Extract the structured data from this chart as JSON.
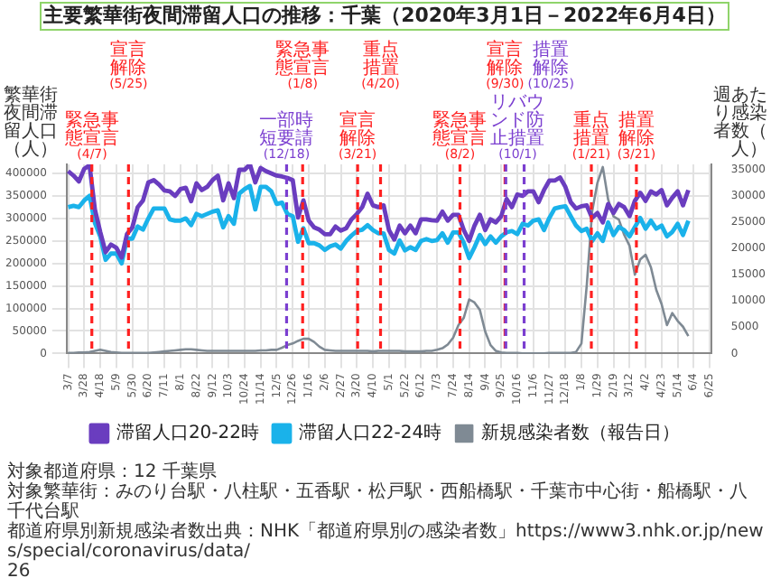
{
  "chart_data": {
    "type": "line",
    "title": "主要繁華街夜間滞留人口の推移：千葉（2020年3月1日－2022年6月4日）",
    "ylabel": "繁華街夜間滞留人口（人）",
    "y2label": "週あたり感染者数（人）",
    "x": [
      "2020-03-07",
      "2020-03-14",
      "2020-03-21",
      "2020-03-28",
      "2020-04-04",
      "2020-04-11",
      "2020-04-18",
      "2020-04-25",
      "2020-05-02",
      "2020-05-09",
      "2020-05-16",
      "2020-05-23",
      "2020-05-30",
      "2020-06-06",
      "2020-06-13",
      "2020-06-20",
      "2020-06-27",
      "2020-07-04",
      "2020-07-11",
      "2020-07-18",
      "2020-07-25",
      "2020-08-01",
      "2020-08-08",
      "2020-08-15",
      "2020-08-22",
      "2020-08-29",
      "2020-09-05",
      "2020-09-12",
      "2020-09-19",
      "2020-09-26",
      "2020-10-03",
      "2020-10-10",
      "2020-10-17",
      "2020-10-24",
      "2020-10-31",
      "2020-11-07",
      "2020-11-14",
      "2020-11-21",
      "2020-11-28",
      "2020-12-05",
      "2020-12-12",
      "2020-12-19",
      "2020-12-26",
      "2021-01-02",
      "2021-01-09",
      "2021-01-16",
      "2021-01-23",
      "2021-01-30",
      "2021-02-06",
      "2021-02-13",
      "2021-02-20",
      "2021-02-27",
      "2021-03-06",
      "2021-03-13",
      "2021-03-20",
      "2021-03-27",
      "2021-04-03",
      "2021-04-10",
      "2021-04-17",
      "2021-04-24",
      "2021-05-01",
      "2021-05-08",
      "2021-05-15",
      "2021-05-22",
      "2021-05-29",
      "2021-06-05",
      "2021-06-12",
      "2021-06-19",
      "2021-06-26",
      "2021-07-03",
      "2021-07-10",
      "2021-07-17",
      "2021-07-24",
      "2021-07-31",
      "2021-08-07",
      "2021-08-14",
      "2021-08-21",
      "2021-08-28",
      "2021-09-04",
      "2021-09-11",
      "2021-09-18",
      "2021-09-25",
      "2021-10-02",
      "2021-10-09",
      "2021-10-16",
      "2021-10-23",
      "2021-10-30",
      "2021-11-06",
      "2021-11-13",
      "2021-11-20",
      "2021-11-27",
      "2021-12-04",
      "2021-12-11",
      "2021-12-18",
      "2021-12-25",
      "2022-01-01",
      "2022-01-08",
      "2022-01-15",
      "2022-01-22",
      "2022-01-29",
      "2022-02-05",
      "2022-02-12",
      "2022-02-19",
      "2022-02-26",
      "2022-03-05",
      "2022-03-12",
      "2022-03-19",
      "2022-03-26",
      "2022-04-02",
      "2022-04-09",
      "2022-04-16",
      "2022-04-23",
      "2022-04-30",
      "2022-05-07",
      "2022-05-14",
      "2022-05-21",
      "2022-05-28"
    ],
    "series": [
      {
        "name": "滞留人口20-22時",
        "color": "#6a3dbf",
        "values": [
          405000,
          395000,
          382000,
          410000,
          418000,
          320000,
          270000,
          225000,
          242000,
          235000,
          213000,
          265000,
          280000,
          325000,
          340000,
          380000,
          385000,
          375000,
          362000,
          360000,
          350000,
          365000,
          368000,
          338000,
          378000,
          363000,
          370000,
          385000,
          395000,
          340000,
          378000,
          345000,
          408000,
          408000,
          420000,
          380000,
          412000,
          405000,
          400000,
          395000,
          393000,
          390000,
          385000,
          302000,
          340000,
          295000,
          280000,
          275000,
          265000,
          265000,
          282000,
          273000,
          278000,
          298000,
          310000,
          325000,
          355000,
          329000,
          325000,
          329000,
          274000,
          253000,
          284000,
          267000,
          284000,
          267000,
          298000,
          298000,
          296000,
          295000,
          315000,
          295000,
          308000,
          308000,
          274000,
          250000,
          284000,
          308000,
          274000,
          298000,
          291000,
          305000,
          343000,
          325000,
          353000,
          350000,
          360000,
          360000,
          336000,
          363000,
          384000,
          384000,
          391000,
          370000,
          336000,
          322000,
          327000,
          329000,
          301000,
          312000,
          291000,
          332000,
          312000,
          332000,
          325000,
          305000,
          339000,
          357000,
          339000,
          360000,
          353000,
          363000,
          329000,
          346000,
          360000,
          329000,
          363000
        ]
      },
      {
        "name": "滞留人口22-24時",
        "color": "#1ab2ea",
        "values": [
          325000,
          328000,
          325000,
          340000,
          350000,
          290000,
          260000,
          208000,
          222000,
          222000,
          200000,
          255000,
          255000,
          282000,
          275000,
          300000,
          322000,
          322000,
          322000,
          298000,
          295000,
          295000,
          300000,
          285000,
          310000,
          305000,
          310000,
          315000,
          318000,
          280000,
          305000,
          288000,
          355000,
          365000,
          372000,
          320000,
          370000,
          370000,
          360000,
          332000,
          335000,
          310000,
          305000,
          248000,
          278000,
          245000,
          245000,
          240000,
          230000,
          238000,
          242000,
          233000,
          250000,
          262000,
          272000,
          275000,
          285000,
          274000,
          267000,
          267000,
          230000,
          222000,
          251000,
          229000,
          236000,
          230000,
          250000,
          254000,
          250000,
          252000,
          267000,
          246000,
          269000,
          269000,
          246000,
          212000,
          236000,
          263000,
          243000,
          260000,
          246000,
          260000,
          269000,
          272000,
          265000,
          288000,
          284000,
          295000,
          298000,
          274000,
          301000,
          322000,
          325000,
          327000,
          305000,
          284000,
          272000,
          277000,
          250000,
          267000,
          250000,
          291000,
          263000,
          281000,
          274000,
          260000,
          281000,
          301000,
          277000,
          295000,
          277000,
          284000,
          260000,
          270000,
          288000,
          263000,
          295000
        ]
      },
      {
        "name": "新規感染者数（報告日）",
        "color": "#7f8a94",
        "axis": "y2",
        "values": [
          100,
          100,
          200,
          200,
          300,
          500,
          700,
          500,
          300,
          200,
          100,
          100,
          100,
          100,
          100,
          100,
          200,
          300,
          400,
          500,
          600,
          700,
          800,
          800,
          700,
          600,
          500,
          500,
          500,
          500,
          500,
          500,
          500,
          500,
          500,
          500,
          600,
          600,
          700,
          700,
          1100,
          1600,
          1900,
          2400,
          2800,
          2800,
          2200,
          1300,
          700,
          600,
          500,
          500,
          500,
          500,
          500,
          500,
          500,
          400,
          500,
          500,
          500,
          500,
          500,
          400,
          400,
          400,
          400,
          500,
          500,
          700,
          1000,
          1700,
          3000,
          5400,
          6800,
          10300,
          9700,
          8300,
          4200,
          1600,
          500,
          200,
          100,
          100,
          100,
          0,
          0,
          0,
          0,
          0,
          100,
          100,
          100,
          100,
          100,
          300,
          1900,
          13000,
          27000,
          32500,
          35500,
          29300,
          26100,
          25500,
          22600,
          20500,
          15000,
          17900,
          18800,
          16400,
          12100,
          9400,
          5400,
          7700,
          6200,
          5100,
          3300
        ]
      }
    ],
    "xlim": [
      "2020-03-05",
      "2022-06-27"
    ],
    "xticks": [
      {
        "value": "2020-03-07",
        "label": "3/7"
      },
      {
        "value": "2020-03-28",
        "label": "3/28"
      },
      {
        "value": "2020-04-18",
        "label": "4/18"
      },
      {
        "value": "2020-05-09",
        "label": "5/9"
      },
      {
        "value": "2020-05-30",
        "label": "5/30"
      },
      {
        "value": "2020-06-20",
        "label": "6/20"
      },
      {
        "value": "2020-07-11",
        "label": "7/11"
      },
      {
        "value": "2020-08-01",
        "label": "8/1"
      },
      {
        "value": "2020-08-22",
        "label": "8/22"
      },
      {
        "value": "2020-09-12",
        "label": "9/12"
      },
      {
        "value": "2020-10-03",
        "label": "10/3"
      },
      {
        "value": "2020-10-24",
        "label": "10/24"
      },
      {
        "value": "2020-11-14",
        "label": "11/14"
      },
      {
        "value": "2020-12-05",
        "label": "12/5"
      },
      {
        "value": "2020-12-26",
        "label": "12/26"
      },
      {
        "value": "2021-01-16",
        "label": "1/16"
      },
      {
        "value": "2021-02-06",
        "label": "2/6"
      },
      {
        "value": "2021-02-27",
        "label": "2/27"
      },
      {
        "value": "2021-03-20",
        "label": "3/20"
      },
      {
        "value": "2021-04-10",
        "label": "4/10"
      },
      {
        "value": "2021-05-01",
        "label": "5/1"
      },
      {
        "value": "2021-05-22",
        "label": "5/22"
      },
      {
        "value": "2021-06-12",
        "label": "6/12"
      },
      {
        "value": "2021-07-03",
        "label": "7/3"
      },
      {
        "value": "2021-07-24",
        "label": "7/24"
      },
      {
        "value": "2021-08-14",
        "label": "8/14"
      },
      {
        "value": "2021-09-04",
        "label": "9/4"
      },
      {
        "value": "2021-09-25",
        "label": "9/25"
      },
      {
        "value": "2021-10-16",
        "label": "10/16"
      },
      {
        "value": "2021-11-06",
        "label": "11/6"
      },
      {
        "value": "2021-11-27",
        "label": "11/27"
      },
      {
        "value": "2021-12-18",
        "label": "12/18"
      },
      {
        "value": "2022-01-08",
        "label": "1/8"
      },
      {
        "value": "2022-01-29",
        "label": "1/29"
      },
      {
        "value": "2022-02-19",
        "label": "2/19"
      },
      {
        "value": "2022-03-12",
        "label": "3/12"
      },
      {
        "value": "2022-04-02",
        "label": "4/2"
      },
      {
        "value": "2022-04-23",
        "label": "4/23"
      },
      {
        "value": "2022-05-14",
        "label": "5/14"
      },
      {
        "value": "2022-06-04",
        "label": "6/4"
      },
      {
        "value": "2022-06-25",
        "label": "6/25"
      }
    ],
    "ylim": [
      0,
      420000
    ],
    "yticks": [
      0,
      50000,
      100000,
      150000,
      200000,
      250000,
      300000,
      350000,
      400000
    ],
    "y2lim": [
      0,
      36000
    ],
    "y2ticks": [
      0,
      5000,
      10000,
      15000,
      20000,
      25000,
      30000,
      35000
    ],
    "ref_lines": [
      {
        "axis": "x",
        "value": "2020-04-07",
        "label": "緊急事態宣言(4/7)",
        "color": "#ff2020",
        "line_style": "dashed"
      },
      {
        "axis": "x",
        "value": "2020-05-25",
        "label": "宣言解除(5/25)",
        "color": "#ff2020",
        "line_style": "dashed"
      },
      {
        "axis": "x",
        "value": "2020-12-18",
        "label": "一部時短要請(12/18)",
        "color": "#7b3fd0",
        "line_style": "dashed"
      },
      {
        "axis": "x",
        "value": "2021-01-08",
        "label": "緊急事態宣言(1/8)",
        "color": "#ff2020",
        "line_style": "dashed"
      },
      {
        "axis": "x",
        "value": "2021-03-21",
        "label": "宣言解除(3/21)",
        "color": "#ff2020",
        "line_style": "dashed"
      },
      {
        "axis": "x",
        "value": "2021-04-20",
        "label": "重点措置(4/20)",
        "color": "#ff2020",
        "line_style": "dashed"
      },
      {
        "axis": "x",
        "value": "2021-08-02",
        "label": "緊急事態宣言(8/2)",
        "color": "#ff2020",
        "line_style": "dashed"
      },
      {
        "axis": "x",
        "value": "2021-09-30",
        "label": "宣言解除(9/30)",
        "color": "#ff2020",
        "line_style": "dashed"
      },
      {
        "axis": "x",
        "value": "2021-10-01",
        "label": "リバウンド防止措置(10/1)",
        "color": "#7b3fd0",
        "line_style": "dashed"
      },
      {
        "axis": "x",
        "value": "2021-10-25",
        "label": "措置解除(10/25)",
        "color": "#7b3fd0",
        "line_style": "dashed"
      },
      {
        "axis": "x",
        "value": "2022-01-21",
        "label": "重点措置(1/21)",
        "color": "#ff2020",
        "line_style": "dashed"
      },
      {
        "axis": "x",
        "value": "2022-03-21",
        "label": "措置解除(3/21)",
        "color": "#ff2020",
        "line_style": "dashed"
      }
    ],
    "annotations": [
      "対象都道府県：12 千葉県",
      "対象繁華街：みのり台駅・八柱駅・五香駅・松戸駅・西船橋駅・千葉市中心街・船橋駅・八千代台駅",
      "都道府県別新規感染者数出典：NHK「都道府県別の感染者数」https://www3.nhk.or.jp/news/special/coronavirus/data/",
      "26"
    ],
    "grid": true,
    "legend": "bottom",
    "line_style": "solid"
  }
}
